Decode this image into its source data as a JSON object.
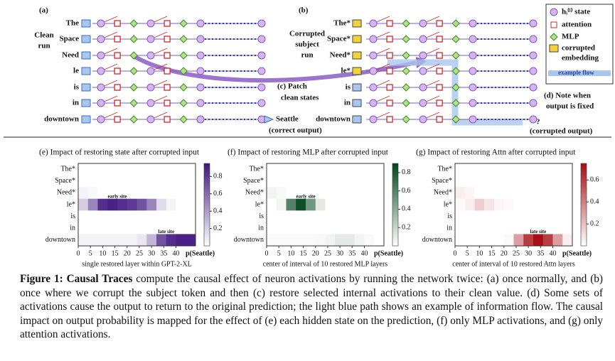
{
  "diagram": {
    "panel_a": "(a)",
    "clean_label": [
      "Clean",
      "run"
    ],
    "tokens_clean": [
      "The",
      "Space",
      "Need",
      "le",
      "is",
      "in",
      "downtown"
    ],
    "panel_b": "(b)",
    "corrupted_label": [
      "Corrupted",
      "subject",
      "run"
    ],
    "tokens_corrupt": [
      "The*",
      "Space*",
      "Need*",
      "le*",
      "is",
      "in",
      "downtown"
    ],
    "patch_label": [
      "(c) Patch",
      "clean states"
    ],
    "note_label": [
      "(d) Note when",
      "output is fixed"
    ],
    "output_clean": "Seattle",
    "output_clean_note": "(correct output)",
    "output_corrupt": "?",
    "output_corrupt_note": "(corrupted output)",
    "legend": [
      "hᵢ⁽ˡ⁾ state",
      "attention",
      "MLP",
      "corrupted",
      "embedding",
      "example flow"
    ]
  },
  "chart_data": [
    {
      "type": "heatmap",
      "title": "(e) Impact of restoring state after corrupted input",
      "xlabel": "single restored layer within GPT-2-XL",
      "output_label": "p(Seattle)",
      "categories": [
        "The*",
        "Space*",
        "Need*",
        "le*",
        "is",
        "in",
        "downtown"
      ],
      "x": [
        0,
        4,
        8,
        12,
        16,
        20,
        24,
        28,
        32,
        36,
        40,
        44
      ],
      "xlim": [
        0,
        48
      ],
      "xticks": [
        0,
        5,
        10,
        15,
        20,
        25,
        30,
        35,
        40
      ],
      "values": [
        [
          0,
          0,
          0,
          0,
          0,
          0,
          0,
          0,
          0,
          0,
          0,
          0
        ],
        [
          0,
          0,
          0,
          0,
          0,
          0,
          0,
          0,
          0,
          0,
          0,
          0
        ],
        [
          0.05,
          0.03,
          0,
          0,
          0,
          0,
          0,
          0,
          0,
          0,
          0,
          0
        ],
        [
          0.2,
          0.5,
          0.85,
          0.9,
          0.85,
          0.8,
          0.7,
          0.5,
          0.15,
          0.05,
          0,
          0
        ],
        [
          0,
          0,
          0,
          0,
          0,
          0,
          0,
          0,
          0,
          0,
          0,
          0
        ],
        [
          0,
          0,
          0,
          0,
          0,
          0,
          0,
          0,
          0,
          0,
          0,
          0
        ],
        [
          0.05,
          0.05,
          0.05,
          0.05,
          0.05,
          0.05,
          0.1,
          0.3,
          0.7,
          0.85,
          0.9,
          0.9
        ]
      ],
      "color": "#3f1580",
      "clim": [
        0,
        0.95
      ],
      "cticks": [
        0.2,
        0.4,
        0.6,
        0.8
      ],
      "annotations": [
        {
          "text": "early site"
        },
        {
          "text": "late site"
        }
      ]
    },
    {
      "type": "heatmap",
      "title": "(f) Impact of restoring MLP after corrupted input",
      "xlabel": "center of interval of 10 restored MLP layers",
      "output_label": "p(Seattle)",
      "categories": [
        "The*",
        "Space*",
        "Need*",
        "le*",
        "is",
        "in",
        "downtown"
      ],
      "x": [
        0,
        4,
        8,
        12,
        16,
        20,
        24,
        28,
        32,
        36,
        40,
        44
      ],
      "xlim": [
        0,
        48
      ],
      "xticks": [
        0,
        5,
        10,
        15,
        20,
        25,
        30,
        35,
        40
      ],
      "values": [
        [
          0,
          0,
          0,
          0,
          0,
          0,
          0,
          0,
          0,
          0,
          0,
          0
        ],
        [
          0,
          0,
          0,
          0,
          0,
          0,
          0,
          0,
          0,
          0,
          0,
          0
        ],
        [
          0.05,
          0.03,
          0,
          0,
          0,
          0,
          0,
          0,
          0,
          0,
          0,
          0
        ],
        [
          0,
          0.05,
          0.6,
          0.85,
          0.5,
          0.1,
          0,
          0,
          0,
          0,
          0,
          0
        ],
        [
          0,
          0,
          0,
          0,
          0,
          0,
          0,
          0,
          0,
          0,
          0,
          0
        ],
        [
          0,
          0,
          0,
          0,
          0,
          0,
          0,
          0,
          0,
          0,
          0,
          0
        ],
        [
          0.02,
          0.02,
          0.02,
          0.02,
          0.02,
          0.03,
          0.05,
          0.1,
          0.1,
          0.05,
          0.02,
          0
        ]
      ],
      "color": "#00441b",
      "clim": [
        0,
        0.9
      ],
      "cticks": [
        0.2,
        0.4,
        0.6,
        0.8
      ],
      "annotations": [
        {
          "text": "early site"
        }
      ]
    },
    {
      "type": "heatmap",
      "title": "(g) Impact of restoring Attn after corrupted input",
      "xlabel": "center of interval of 10 restored Attn layers",
      "output_label": "p(Seattle)",
      "categories": [
        "The*",
        "Space*",
        "Need*",
        "le*",
        "is",
        "in",
        "downtown"
      ],
      "x": [
        0,
        4,
        8,
        12,
        16,
        20,
        24,
        28,
        32,
        36,
        40,
        44
      ],
      "xlim": [
        0,
        48
      ],
      "xticks": [
        0,
        5,
        10,
        15,
        20,
        25,
        30,
        35,
        40
      ],
      "values": [
        [
          0,
          0,
          0,
          0,
          0,
          0,
          0,
          0,
          0,
          0,
          0,
          0
        ],
        [
          0,
          0,
          0,
          0,
          0,
          0,
          0,
          0,
          0,
          0,
          0,
          0
        ],
        [
          0.05,
          0.03,
          0,
          0,
          0,
          0,
          0,
          0,
          0,
          0,
          0,
          0
        ],
        [
          0.02,
          0.05,
          0.15,
          0.08,
          0.03,
          0.02,
          0,
          0,
          0,
          0,
          0,
          0
        ],
        [
          0,
          0,
          0,
          0,
          0,
          0,
          0,
          0,
          0,
          0,
          0,
          0
        ],
        [
          0,
          0,
          0,
          0,
          0,
          0,
          0,
          0,
          0,
          0,
          0,
          0
        ],
        [
          0,
          0,
          0,
          0,
          0,
          0.02,
          0.3,
          0.6,
          0.75,
          0.6,
          0.3,
          0.05
        ]
      ],
      "color": "#a50f15",
      "clim": [
        0,
        0.75
      ],
      "cticks": [
        0.2,
        0.4,
        0.6
      ],
      "annotations": [
        {
          "text": "late site"
        }
      ]
    }
  ],
  "caption": {
    "label": "Figure 1:",
    "term": "Causal Traces",
    "text": "compute the causal effect of neuron activations by running the network twice: (a) once normally, and (b) once where we corrupt the subject token and then (c) restore selected internal activations to their clean value. (d) Some sets of activations cause the output to return to the original prediction; the light blue path shows an example of information flow. The causal impact on output probability is mapped for the effect of (e) each hidden state on the prediction, (f) only MLP activations, and (g) only attention activations."
  }
}
